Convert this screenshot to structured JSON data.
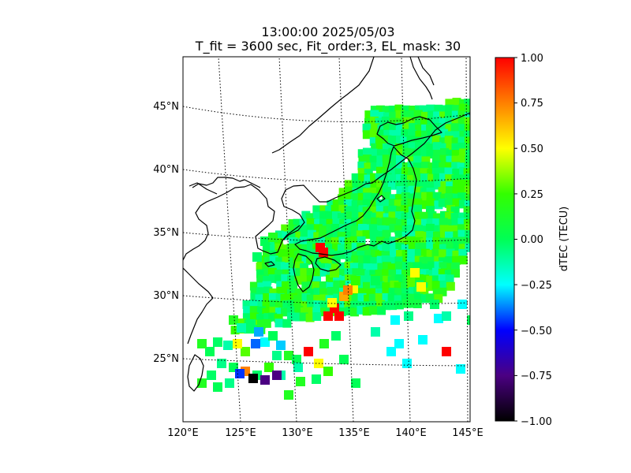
{
  "title": {
    "line1": "13:00:00 2025/05/03",
    "line2": "T_fit = 3600 sec, Fit_order:3, EL_mask: 30"
  },
  "map": {
    "lon_range": [
      120,
      145
    ],
    "lat_range": [
      20,
      49
    ],
    "lon_ticks": [
      "120°E",
      "125°E",
      "130°E",
      "135°E",
      "140°E",
      "145°E"
    ],
    "lat_ticks": [
      "25°N",
      "30°N",
      "35°N",
      "40°N",
      "45°N"
    ],
    "graticule": "dotted",
    "coastlines": true
  },
  "colorbar": {
    "label": "dTEC (TECU)",
    "range": [
      -1.0,
      1.0
    ],
    "ticks": [
      "1.00",
      "0.75",
      "0.50",
      "0.25",
      "0.00",
      "−0.25",
      "−0.50",
      "−0.75",
      "−1.00"
    ],
    "colormap": [
      "#000000",
      "#4b0082",
      "#0000ff",
      "#00ffff",
      "#00ff55",
      "#33ff00",
      "#ffff00",
      "#ff8000",
      "#ff0000"
    ]
  }
}
